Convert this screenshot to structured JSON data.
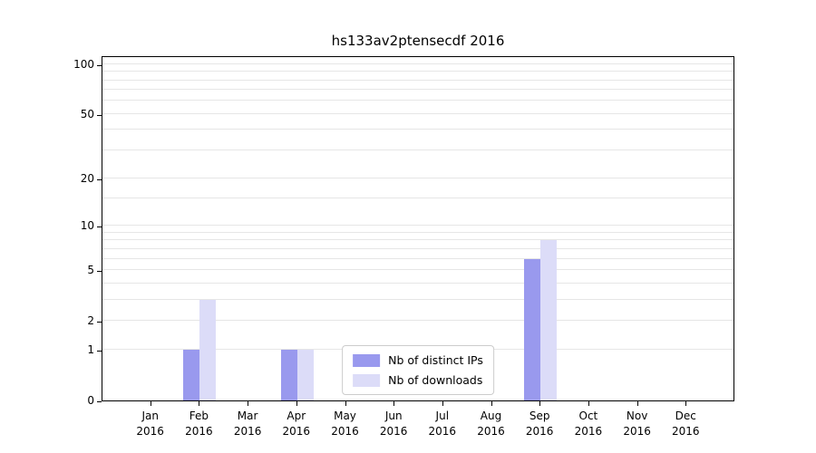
{
  "chart_data": {
    "type": "bar",
    "title": "hs133av2ptensecdf 2016",
    "year": "2016",
    "categories": [
      "Jan",
      "Feb",
      "Mar",
      "Apr",
      "May",
      "Jun",
      "Jul",
      "Aug",
      "Sep",
      "Oct",
      "Nov",
      "Dec"
    ],
    "series": [
      {
        "name": "Nb of distinct IPs",
        "color": "#9999ee",
        "values": [
          0,
          1,
          0,
          1,
          0,
          0,
          0,
          0,
          6,
          0,
          0,
          0
        ]
      },
      {
        "name": "Nb of downloads",
        "color": "#dcdcf8",
        "values": [
          0,
          3,
          0,
          1,
          0,
          0,
          0,
          0,
          8,
          0,
          0,
          0
        ]
      }
    ],
    "yticks": [
      0,
      1,
      2,
      5,
      10,
      20,
      50,
      100
    ],
    "minor_yticks": [
      3,
      4,
      6,
      7,
      8,
      9,
      15,
      30,
      40,
      60,
      70,
      80,
      90
    ],
    "scale": "log1p",
    "ymax": 113,
    "xlabel": "",
    "ylabel": "",
    "grid": true,
    "legend_position": "lower center"
  }
}
